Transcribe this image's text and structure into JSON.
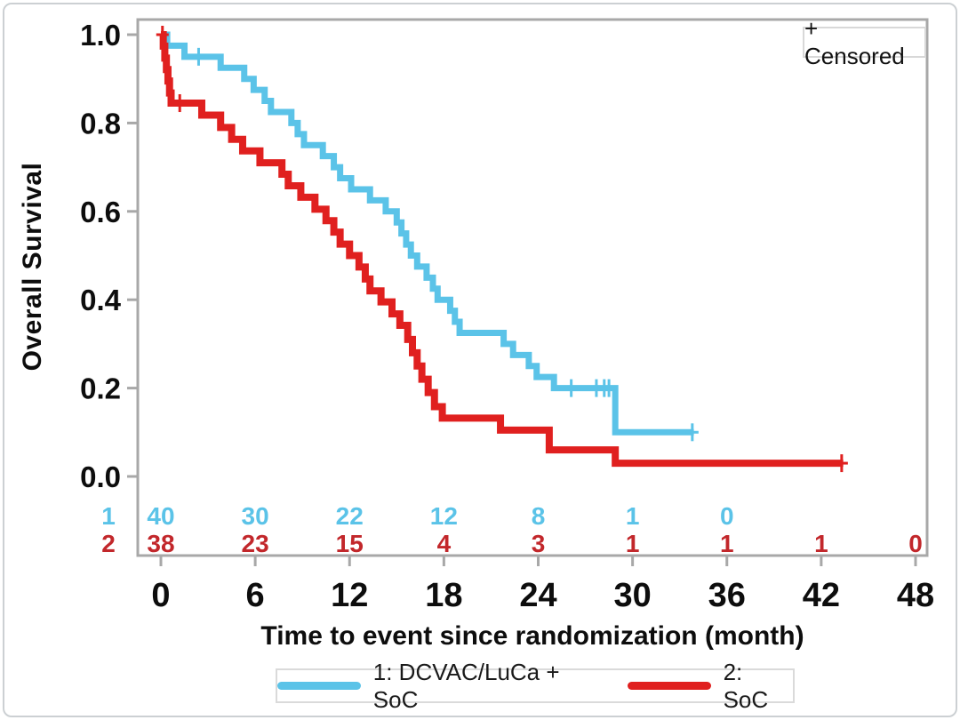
{
  "figure": {
    "background": "#ffffff",
    "frame_color": "#a8a8a8"
  },
  "censored_box": {
    "label": "+ Censored"
  },
  "axes": {
    "x": {
      "label": "Time to event since randomization (month)",
      "ticks": [
        0,
        6,
        12,
        18,
        24,
        30,
        36,
        42,
        48
      ],
      "min": 0,
      "max": 48
    },
    "y": {
      "label": "Overall Survival",
      "tick_labels": [
        "1.0",
        "0.8",
        "0.6",
        "0.4",
        "0.2",
        "0.0"
      ],
      "tick_values": [
        1.0,
        0.8,
        0.6,
        0.4,
        0.2,
        0.0
      ],
      "min": 0,
      "max": 1
    }
  },
  "chart_data": {
    "type": "line",
    "subtype": "kaplan-meier-step",
    "title": "",
    "xlabel": "Time to event since randomization (month)",
    "ylabel": "Overall Survival",
    "xlim": [
      0,
      48
    ],
    "ylim": [
      0,
      1
    ],
    "grid": false,
    "legend_position": "bottom",
    "censored_marker": "+",
    "series": [
      {
        "name": "1: DCVAC/LuCa + SoC",
        "color": "#5BC3E8",
        "line_width": 7,
        "steps": [
          [
            0,
            1.0
          ],
          [
            0.4,
            0.975
          ],
          [
            1.5,
            0.95
          ],
          [
            3.8,
            0.925
          ],
          [
            5.3,
            0.9
          ],
          [
            5.9,
            0.875
          ],
          [
            6.6,
            0.85
          ],
          [
            7.0,
            0.825
          ],
          [
            8.3,
            0.8
          ],
          [
            8.7,
            0.775
          ],
          [
            9.1,
            0.75
          ],
          [
            10.3,
            0.725
          ],
          [
            11.0,
            0.7
          ],
          [
            11.4,
            0.675
          ],
          [
            12.1,
            0.65
          ],
          [
            13.3,
            0.625
          ],
          [
            14.3,
            0.6
          ],
          [
            15.0,
            0.575
          ],
          [
            15.3,
            0.55
          ],
          [
            15.6,
            0.525
          ],
          [
            15.9,
            0.5
          ],
          [
            16.3,
            0.475
          ],
          [
            16.9,
            0.45
          ],
          [
            17.3,
            0.425
          ],
          [
            17.6,
            0.4
          ],
          [
            18.4,
            0.375
          ],
          [
            18.7,
            0.35
          ],
          [
            19.0,
            0.325
          ],
          [
            21.8,
            0.3
          ],
          [
            22.4,
            0.275
          ],
          [
            23.4,
            0.25
          ],
          [
            23.9,
            0.225
          ],
          [
            25.0,
            0.2
          ],
          [
            28.9,
            0.1
          ]
        ],
        "end_time": 33.9,
        "censored": [
          [
            2.4,
            0.95
          ],
          [
            26.1,
            0.2
          ],
          [
            27.7,
            0.2
          ],
          [
            28.2,
            0.2
          ],
          [
            28.5,
            0.2
          ],
          [
            33.8,
            0.1
          ]
        ]
      },
      {
        "name": "2: SoC",
        "color": "#E0201F",
        "line_width": 8,
        "steps": [
          [
            0,
            1.0
          ],
          [
            0.15,
            0.974
          ],
          [
            0.25,
            0.947
          ],
          [
            0.35,
            0.921
          ],
          [
            0.45,
            0.895
          ],
          [
            0.55,
            0.868
          ],
          [
            0.65,
            0.845
          ],
          [
            2.6,
            0.818
          ],
          [
            3.8,
            0.79
          ],
          [
            4.5,
            0.763
          ],
          [
            5.2,
            0.737
          ],
          [
            6.3,
            0.71
          ],
          [
            7.7,
            0.684
          ],
          [
            8.1,
            0.658
          ],
          [
            8.9,
            0.632
          ],
          [
            9.8,
            0.605
          ],
          [
            10.5,
            0.579
          ],
          [
            11.0,
            0.553
          ],
          [
            11.4,
            0.526
          ],
          [
            12.0,
            0.5
          ],
          [
            12.6,
            0.474
          ],
          [
            13.0,
            0.447
          ],
          [
            13.3,
            0.42
          ],
          [
            14.0,
            0.395
          ],
          [
            14.7,
            0.368
          ],
          [
            15.2,
            0.342
          ],
          [
            15.7,
            0.31
          ],
          [
            16.0,
            0.28
          ],
          [
            16.3,
            0.25
          ],
          [
            16.6,
            0.22
          ],
          [
            17.0,
            0.19
          ],
          [
            17.4,
            0.158
          ],
          [
            17.9,
            0.132
          ],
          [
            21.6,
            0.105
          ],
          [
            24.7,
            0.06
          ],
          [
            28.9,
            0.03
          ]
        ],
        "end_time": 43.4,
        "censored": [
          [
            0.1,
            1.0
          ],
          [
            1.2,
            0.845
          ],
          [
            43.3,
            0.03
          ]
        ]
      }
    ]
  },
  "at_risk": {
    "times": [
      0,
      6,
      12,
      18,
      24,
      30,
      36,
      42,
      48
    ],
    "rows": [
      {
        "label": "1",
        "color": "#5BC3E8",
        "counts": [
          "40",
          "30",
          "22",
          "12",
          "8",
          "1",
          "0",
          "",
          ""
        ]
      },
      {
        "label": "2",
        "color": "#C2272B",
        "counts": [
          "38",
          "23",
          "15",
          "4",
          "3",
          "1",
          "1",
          "1",
          "0"
        ]
      }
    ]
  }
}
